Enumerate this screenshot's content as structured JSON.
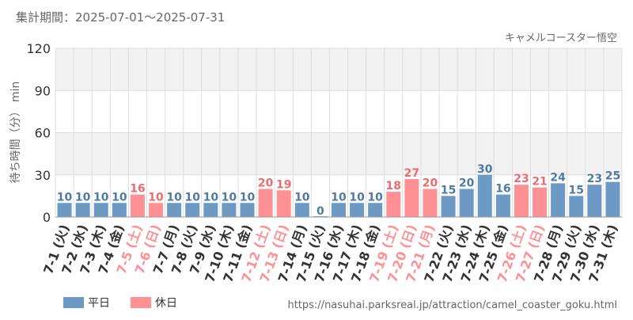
{
  "header": {
    "period": "集計期間：2025-07-01～2025-07-31",
    "attraction": "キャメルコースター悟空"
  },
  "footer": {
    "url": "https://nasuhai.parksreal.jp/attraction/camel_coaster_goku.html"
  },
  "colors": {
    "weekday": "#6d9ac4",
    "holiday": "#ff9194",
    "weekday_label": "#4e7aa6",
    "holiday_label": "#ec6b6e",
    "band": "#f2f2f2",
    "grid": "#dddddd",
    "axis_text": "#333333",
    "meta_text": "#666666"
  },
  "chart_data": {
    "type": "bar",
    "ylabel": "待ち時間（分） min",
    "ylim": [
      0,
      120
    ],
    "yticks": [
      0,
      30,
      60,
      90,
      120
    ],
    "legend": {
      "placement": "bottom-left",
      "items": [
        {
          "key": "weekday",
          "label": "平日"
        },
        {
          "key": "holiday",
          "label": "休日"
        }
      ]
    },
    "categories": [
      "7-1 (火)",
      "7-2 (水)",
      "7-3 (木)",
      "7-4 (金)",
      "7-5 (土)",
      "7-6 (日)",
      "7-7 (月)",
      "7-8 (火)",
      "7-9 (水)",
      "7-10 (木)",
      "7-11 (金)",
      "7-12 (土)",
      "7-13 (日)",
      "7-14 (月)",
      "7-15 (火)",
      "7-16 (水)",
      "7-17 (木)",
      "7-18 (金)",
      "7-19 (土)",
      "7-20 (日)",
      "7-21 (月)",
      "7-22 (火)",
      "7-23 (水)",
      "7-24 (木)",
      "7-25 (金)",
      "7-26 (土)",
      "7-27 (日)",
      "7-28 (月)",
      "7-29 (火)",
      "7-30 (水)",
      "7-31 (木)"
    ],
    "values": [
      10,
      10,
      10,
      10,
      16,
      10,
      10,
      10,
      10,
      10,
      10,
      20,
      19,
      10,
      0,
      10,
      10,
      10,
      18,
      27,
      20,
      15,
      20,
      30,
      16,
      23,
      21,
      24,
      15,
      23,
      25
    ],
    "day_type": [
      "weekday",
      "weekday",
      "weekday",
      "weekday",
      "holiday",
      "holiday",
      "weekday",
      "weekday",
      "weekday",
      "weekday",
      "weekday",
      "holiday",
      "holiday",
      "weekday",
      "weekday",
      "weekday",
      "weekday",
      "weekday",
      "holiday",
      "holiday",
      "holiday",
      "weekday",
      "weekday",
      "weekday",
      "weekday",
      "holiday",
      "holiday",
      "weekday",
      "weekday",
      "weekday",
      "weekday"
    ]
  }
}
